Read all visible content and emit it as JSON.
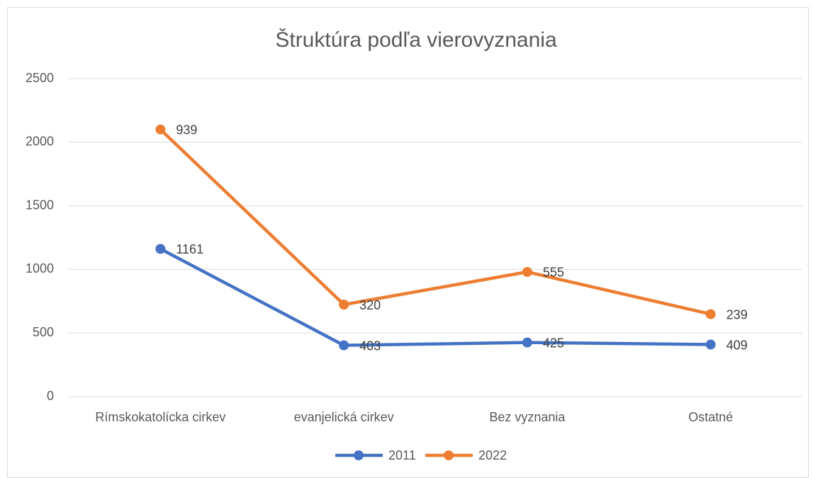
{
  "chart_data": {
    "type": "line",
    "stacked": true,
    "title": "Štruktúra podľa vierovyznania",
    "categories": [
      "Rímskokatolícka cirkev",
      "evanjelická cirkev",
      "Bez vyznania",
      "Ostatné"
    ],
    "series": [
      {
        "name": "2011",
        "color": "#4472c4",
        "values": [
          1161,
          403,
          425,
          409
        ]
      },
      {
        "name": "2022",
        "color": "#ed7d31",
        "values": [
          939,
          320,
          555,
          239
        ]
      }
    ],
    "ylim": [
      0,
      2500
    ],
    "yticks": [
      0,
      500,
      1000,
      1500,
      2000,
      2500
    ],
    "grid": true,
    "legend": "bottom"
  }
}
